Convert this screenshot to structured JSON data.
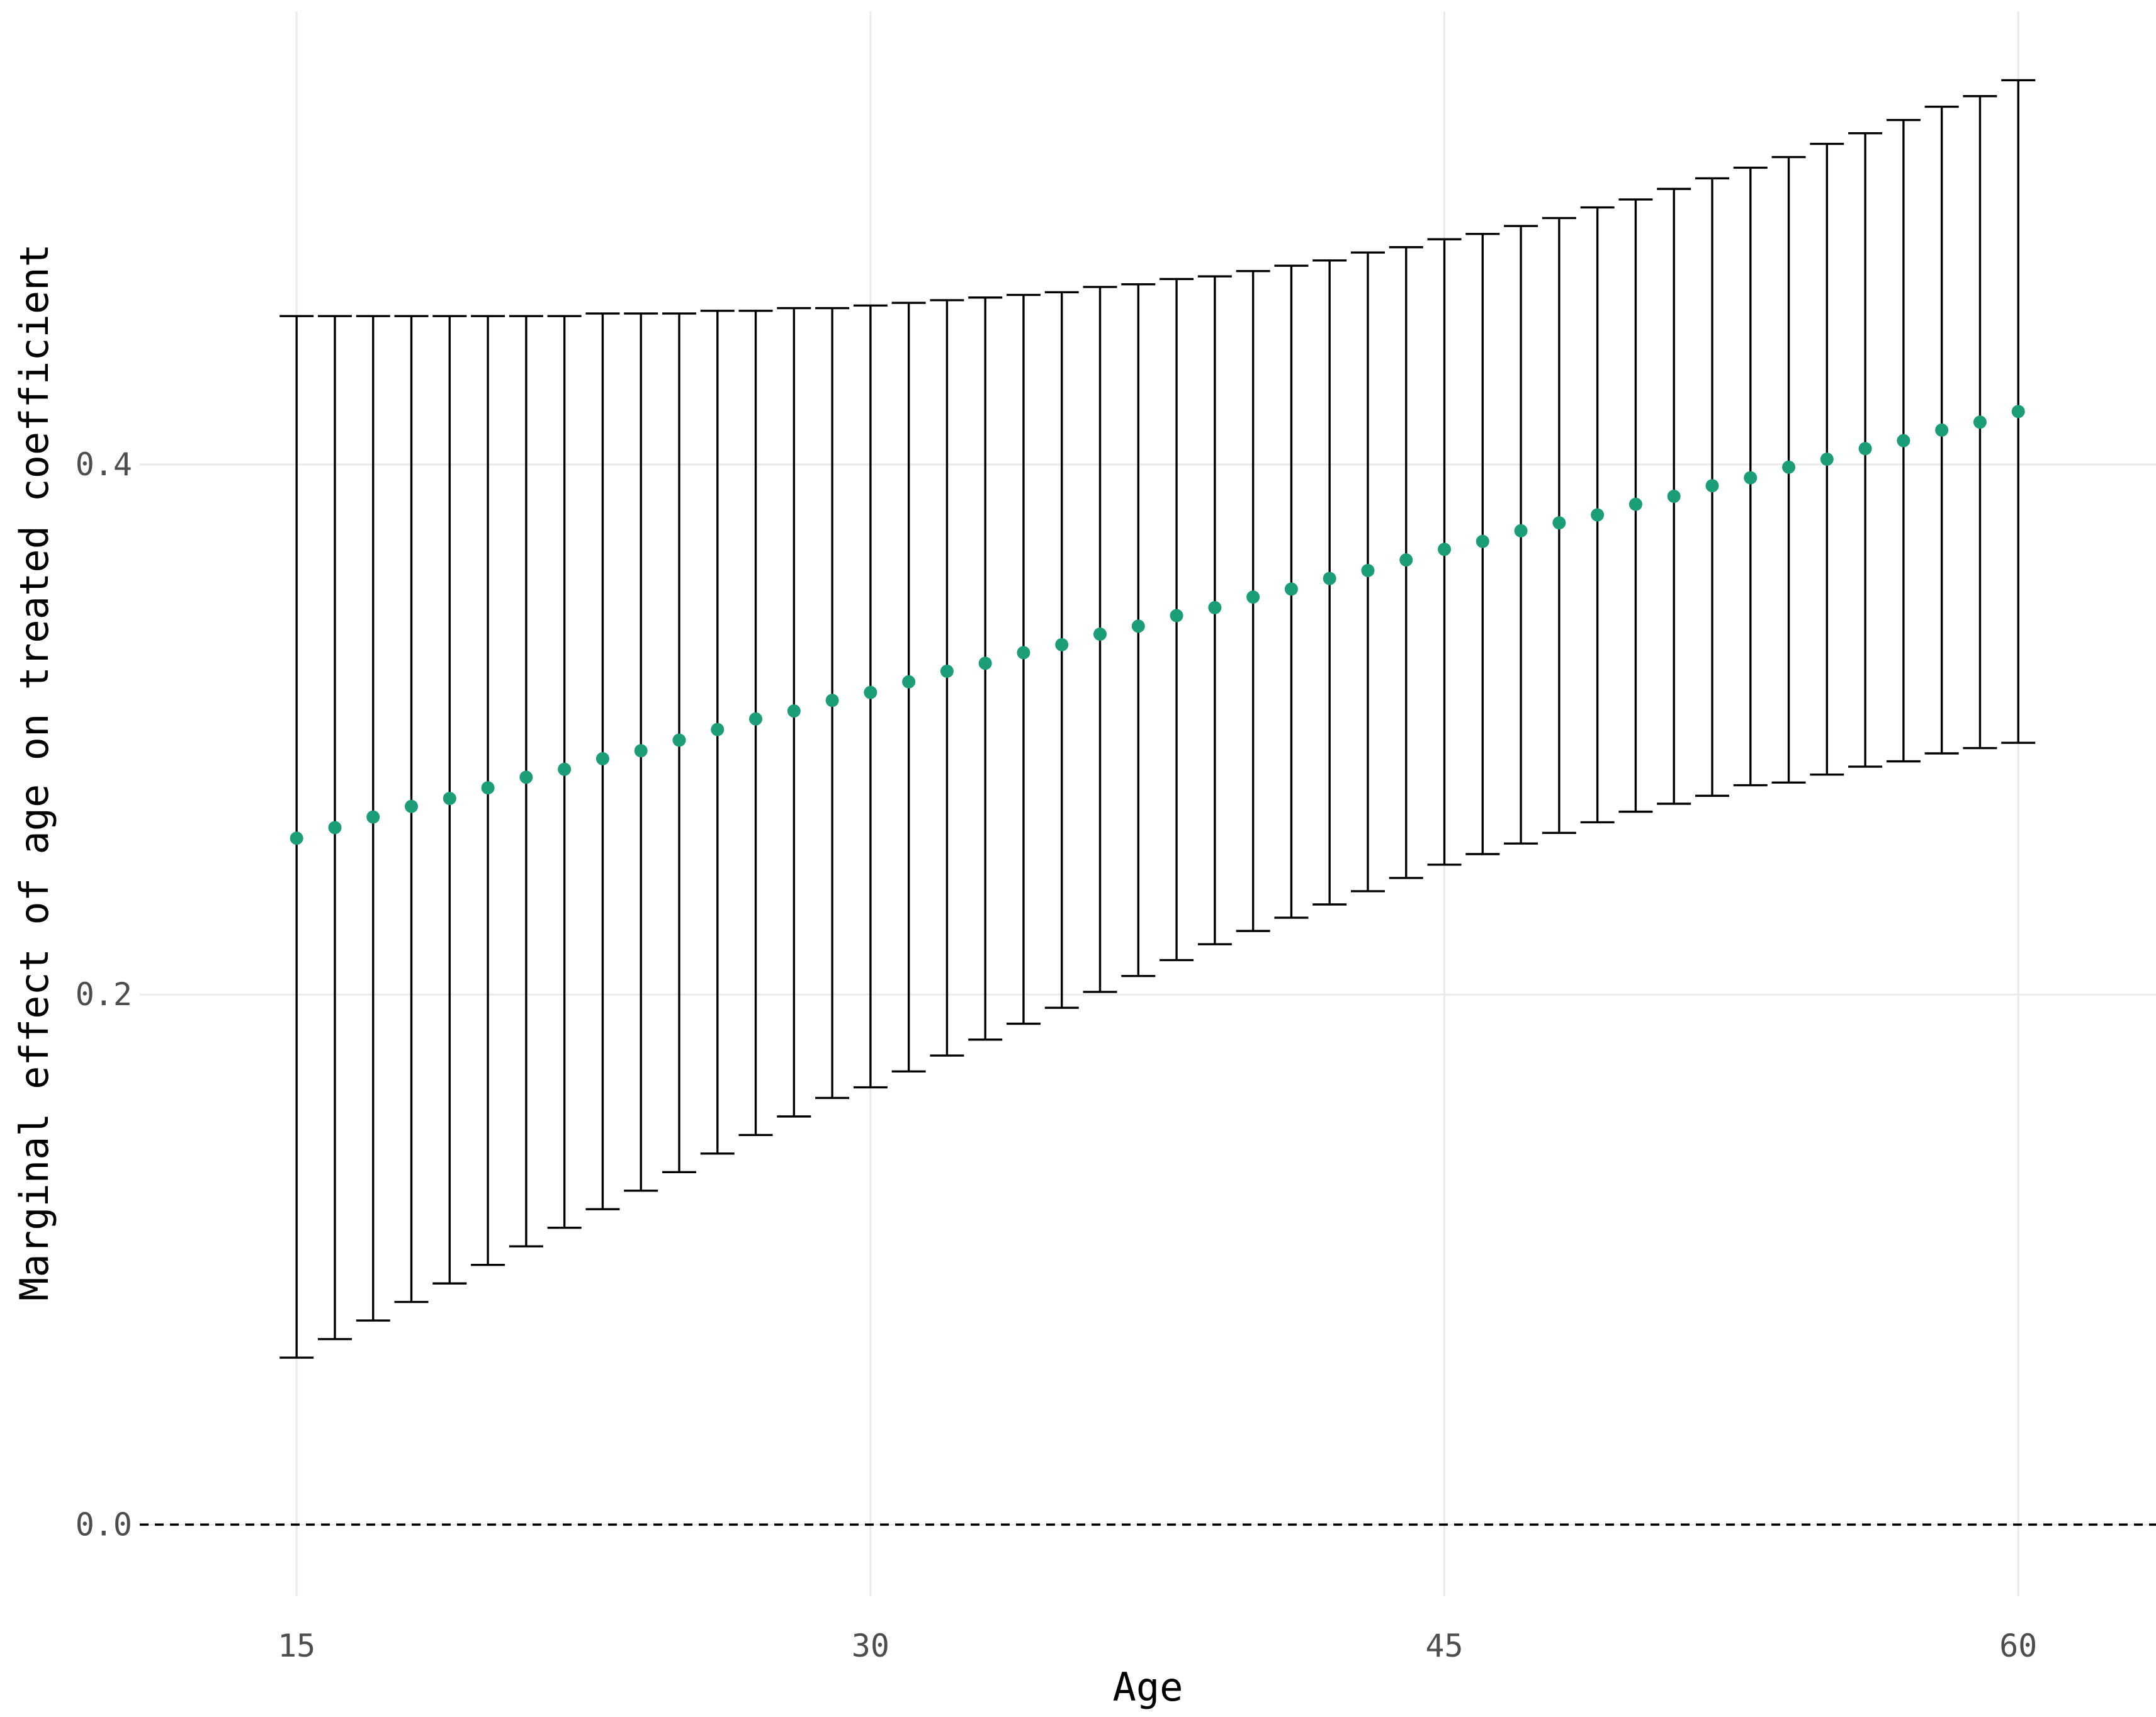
{
  "chart_data": {
    "type": "scatter",
    "title": "",
    "xlabel": "Age",
    "ylabel": "Marginal effect of age on treated coefficient",
    "xlim": [
      10.9,
      63.6
    ],
    "ylim": [
      -0.027,
      0.571
    ],
    "x_ticks": [
      15,
      30,
      45,
      60
    ],
    "y_ticks": [
      0.0,
      0.2,
      0.4
    ],
    "x_tick_labels": [
      "15",
      "30",
      "45",
      "60"
    ],
    "y_tick_labels": [
      "0.0",
      "0.2",
      "0.4"
    ],
    "reference_line": {
      "y": 0,
      "style": "dashed",
      "color": "#000000"
    },
    "grid": true,
    "legend": "none",
    "colors": {
      "point": "#1b9e77",
      "errorbar": "#000000",
      "grid": "#ebebeb"
    },
    "series": [
      {
        "x": [
          15,
          16,
          17,
          18,
          19,
          20,
          21,
          22,
          23,
          24,
          25,
          26,
          27,
          28,
          29,
          30,
          31,
          32,
          33,
          34,
          35,
          36,
          37,
          38,
          39,
          40,
          41,
          42,
          43,
          44,
          45,
          46,
          47,
          48,
          49,
          50,
          51,
          52,
          53,
          54,
          55,
          56,
          57,
          58,
          59,
          60
        ],
        "estimate": [
          0.259,
          0.263,
          0.267,
          0.271,
          0.274,
          0.278,
          0.282,
          0.285,
          0.289,
          0.292,
          0.296,
          0.3,
          0.304,
          0.307,
          0.311,
          0.314,
          0.318,
          0.322,
          0.325,
          0.329,
          0.332,
          0.336,
          0.339,
          0.343,
          0.346,
          0.35,
          0.353,
          0.357,
          0.36,
          0.364,
          0.368,
          0.371,
          0.375,
          0.378,
          0.381,
          0.385,
          0.388,
          0.392,
          0.395,
          0.399,
          0.402,
          0.406,
          0.409,
          0.413,
          0.416,
          0.42
        ],
        "lower": [
          0.063,
          0.07,
          0.077,
          0.084,
          0.091,
          0.098,
          0.105,
          0.112,
          0.119,
          0.126,
          0.133,
          0.14,
          0.147,
          0.154,
          0.161,
          0.165,
          0.171,
          0.177,
          0.183,
          0.189,
          0.195,
          0.201,
          0.207,
          0.213,
          0.219,
          0.224,
          0.229,
          0.234,
          0.239,
          0.244,
          0.249,
          0.253,
          0.257,
          0.261,
          0.265,
          0.269,
          0.272,
          0.275,
          0.279,
          0.28,
          0.283,
          0.286,
          0.288,
          0.291,
          0.293,
          0.295
        ],
        "upper": [
          0.456,
          0.456,
          0.456,
          0.456,
          0.456,
          0.456,
          0.456,
          0.456,
          0.457,
          0.457,
          0.457,
          0.458,
          0.458,
          0.459,
          0.459,
          0.46,
          0.461,
          0.462,
          0.463,
          0.464,
          0.465,
          0.467,
          0.468,
          0.47,
          0.471,
          0.473,
          0.475,
          0.477,
          0.48,
          0.482,
          0.485,
          0.487,
          0.49,
          0.493,
          0.497,
          0.5,
          0.504,
          0.508,
          0.512,
          0.516,
          0.521,
          0.525,
          0.53,
          0.535,
          0.539,
          0.545
        ]
      }
    ]
  }
}
